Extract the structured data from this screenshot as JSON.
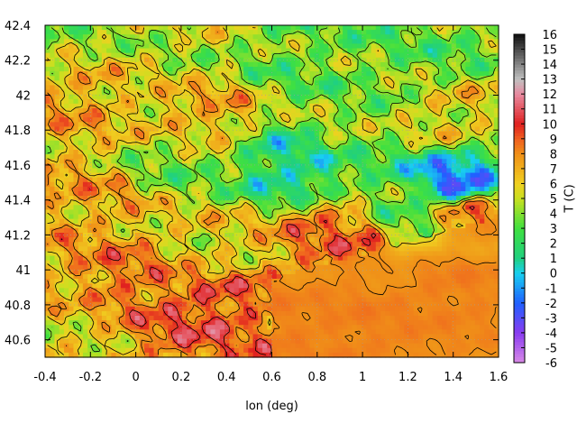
{
  "chart_data": {
    "type": "heatmap",
    "title": "",
    "xlabel": "lon (deg)",
    "ylabel": "",
    "colorbar_label": "T (C)",
    "xlim": [
      -0.4,
      1.6
    ],
    "ylim": [
      40.5,
      42.4
    ],
    "x_ticks": [
      "-0.4",
      "-0.2",
      "0",
      "0.2",
      "0.4",
      "0.6",
      "0.8",
      "1",
      "1.2",
      "1.4",
      "1.6"
    ],
    "y_ticks": [
      "40.6",
      "40.8",
      "41",
      "41.2",
      "41.4",
      "41.6",
      "41.8",
      "42",
      "42.2",
      "42.4"
    ],
    "colorbar_range": [
      -6,
      16
    ],
    "colorbar_ticks": [
      "-6",
      "-5",
      "-4",
      "-3",
      "-2",
      "-1",
      "0",
      "1",
      "2",
      "3",
      "4",
      "5",
      "6",
      "7",
      "8",
      "9",
      "10",
      "11",
      "12",
      "13",
      "14",
      "15",
      "16"
    ],
    "colormap": [
      {
        "v": -6,
        "color": "#d98ae6"
      },
      {
        "v": -4,
        "color": "#8a3cf0"
      },
      {
        "v": -2,
        "color": "#2060ff"
      },
      {
        "v": 0,
        "color": "#18d0f0"
      },
      {
        "v": 1,
        "color": "#20d080"
      },
      {
        "v": 3,
        "color": "#40e040"
      },
      {
        "v": 5,
        "color": "#c8e020"
      },
      {
        "v": 6,
        "color": "#f0d020"
      },
      {
        "v": 8,
        "color": "#f09018"
      },
      {
        "v": 9,
        "color": "#f06020"
      },
      {
        "v": 10,
        "color": "#e02020"
      },
      {
        "v": 12,
        "color": "#e88aa0"
      },
      {
        "v": 13,
        "color": "#c0c0c0"
      },
      {
        "v": 16,
        "color": "#101010"
      }
    ],
    "grid": true,
    "field_description_points": [
      {
        "lon": -0.35,
        "lat": 42.3,
        "T": 4.5
      },
      {
        "lon": 0.2,
        "lat": 42.2,
        "T": 5
      },
      {
        "lon": 0.7,
        "lat": 42.2,
        "T": 3.5
      },
      {
        "lon": 1.3,
        "lat": 42.2,
        "T": 3.5
      },
      {
        "lon": -0.3,
        "lat": 42.0,
        "T": 7
      },
      {
        "lon": 0.3,
        "lat": 41.9,
        "T": 7
      },
      {
        "lon": 0.9,
        "lat": 41.8,
        "T": 4
      },
      {
        "lon": 1.4,
        "lat": 41.9,
        "T": 6
      },
      {
        "lon": 0.7,
        "lat": 41.6,
        "T": 1
      },
      {
        "lon": 0.2,
        "lat": 41.6,
        "T": 4
      },
      {
        "lon": -0.2,
        "lat": 41.4,
        "T": 7
      },
      {
        "lon": 1.4,
        "lat": 41.5,
        "T": -1
      },
      {
        "lon": 1.5,
        "lat": 41.3,
        "T": 8
      },
      {
        "lon": 1.2,
        "lat": 41.4,
        "T": 3
      },
      {
        "lon": 0.3,
        "lat": 41.1,
        "T": 6
      },
      {
        "lon": 0.9,
        "lat": 41.2,
        "T": 8.5
      },
      {
        "lon": 0.3,
        "lat": 40.8,
        "T": 9.5
      },
      {
        "lon": 0.0,
        "lat": 40.9,
        "T": 8.5
      },
      {
        "lon": -0.3,
        "lat": 40.7,
        "T": 6
      },
      {
        "lon": 1.0,
        "lat": 40.7,
        "T": 8.3
      },
      {
        "lon": 1.4,
        "lat": 40.9,
        "T": 8.3
      },
      {
        "lon": 0.7,
        "lat": 40.55,
        "T": 8.3
      }
    ]
  }
}
